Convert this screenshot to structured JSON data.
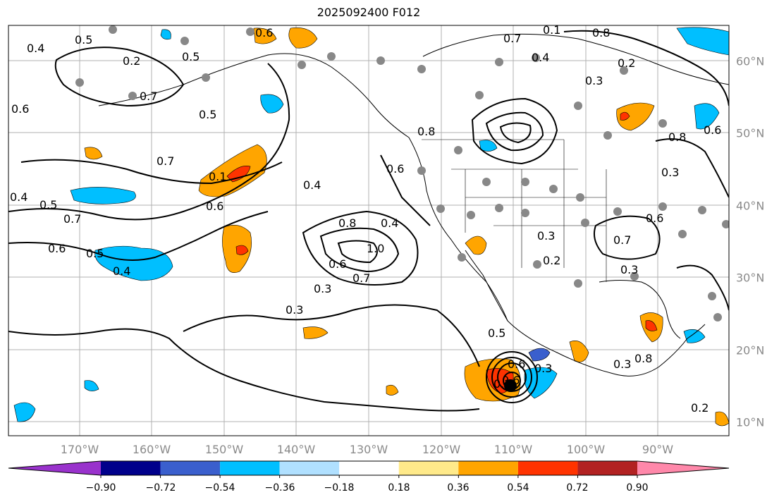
{
  "title": "2025092400 F012",
  "map": {
    "lon_labels": [
      "170°W",
      "160°W",
      "150°W",
      "140°W",
      "130°W",
      "120°W",
      "110°W",
      "100°W",
      "90°W"
    ],
    "lat_labels": [
      "60°N",
      "50°N",
      "40°N",
      "30°N",
      "20°N",
      "10°N"
    ],
    "contour_labels": [
      "0.4",
      "0.5",
      "0.6",
      "0.5",
      "0.2",
      "0.7",
      "0.5",
      "0.7",
      "0.4",
      "0.5",
      "0.7",
      "0.6",
      "0.5",
      "0.4",
      "0.6",
      "0.1",
      "0.4",
      "0.8",
      "0.4",
      "1.0",
      "0.6",
      "0.7",
      "0.3",
      "0.3",
      "0.6",
      "0.8",
      "0.7",
      "0.1",
      "0.8",
      "0.4",
      "0.6",
      "0.2",
      "0.3",
      "0.3",
      "0.2",
      "0.7",
      "0.3",
      "0.6",
      "0.3",
      "0.6",
      "0.8",
      "0.6",
      "0.3",
      "0.2",
      "0.8",
      "0.3",
      "0.2",
      "0.5",
      "0.6"
    ],
    "colors": {
      "land_line": "#000000",
      "grid": "#b0b0b0",
      "ocean": "#ffffff"
    }
  },
  "colorbar": {
    "ticks": [
      "−0.90",
      "−0.72",
      "−0.54",
      "−0.36",
      "−0.18",
      "0.18",
      "0.36",
      "0.54",
      "0.72",
      "0.90"
    ],
    "colors": [
      "#9932cc",
      "#00008b",
      "#3a5fcd",
      "#00bfff",
      "#b0e0ff",
      "#ffffff",
      "#ffea8a",
      "#ffa500",
      "#ff3300",
      "#b22222",
      "#ff88aa"
    ]
  }
}
